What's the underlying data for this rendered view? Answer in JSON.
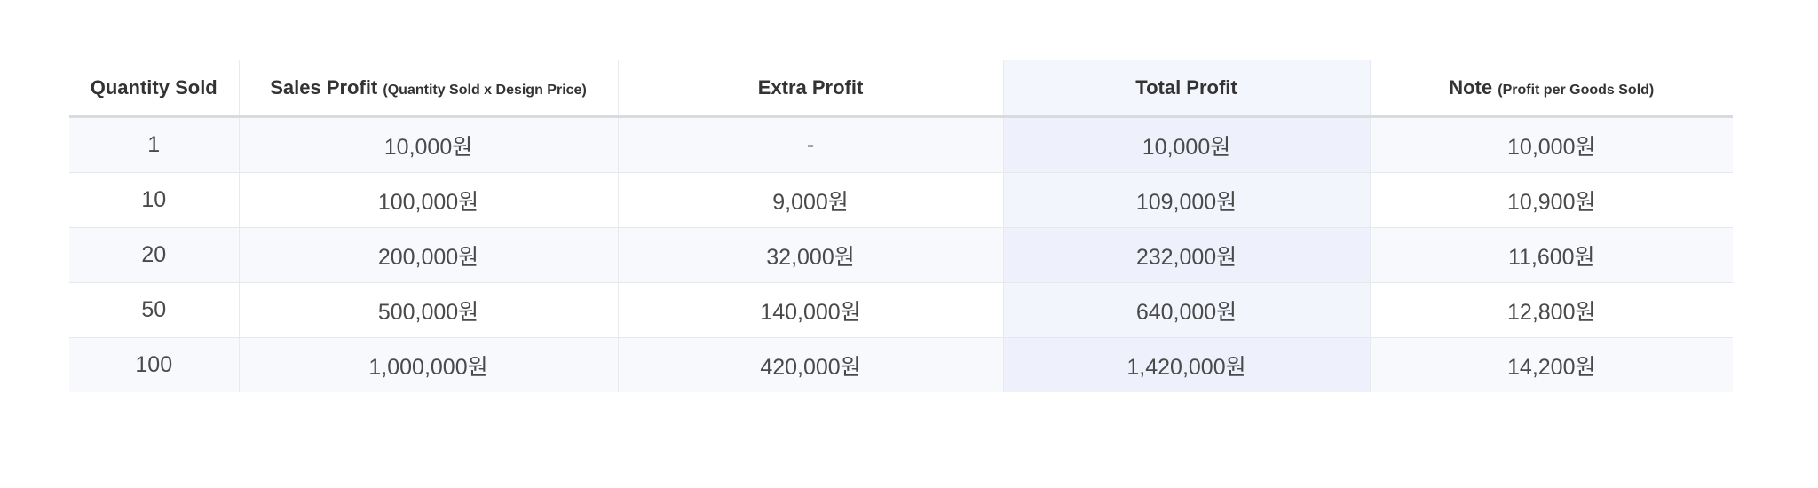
{
  "table": {
    "headers": [
      {
        "main": "Quantity Sold",
        "sub": ""
      },
      {
        "main": "Sales Profit",
        "sub": "(Quantity Sold x Design Price)"
      },
      {
        "main": "Extra Profit",
        "sub": ""
      },
      {
        "main": "Total Profit",
        "sub": ""
      },
      {
        "main": "Note",
        "sub": "(Profit per Goods Sold)"
      }
    ],
    "rows": [
      [
        "1",
        "10,000원",
        "-",
        "10,000원",
        "10,000원"
      ],
      [
        "10",
        "100,000원",
        "9,000원",
        "109,000원",
        "10,900원"
      ],
      [
        "20",
        "200,000원",
        "32,000원",
        "232,000원",
        "11,600원"
      ],
      [
        "50",
        "500,000원",
        "140,000원",
        "640,000원",
        "12,800원"
      ],
      [
        "100",
        "1,000,000원",
        "420,000원",
        "1,420,000원",
        "14,200원"
      ]
    ],
    "highlight_column_color": "#eef1fb"
  }
}
